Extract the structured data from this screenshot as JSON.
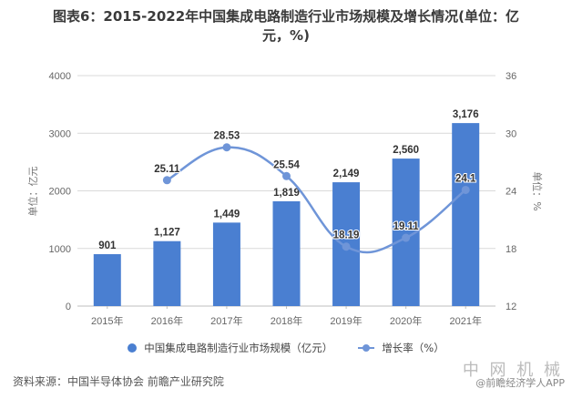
{
  "title": {
    "line1": "图表6：2015-2022年中国集成电路制造行业市场规模及增长情况(单位：亿",
    "line2": "元，%)"
  },
  "axes": {
    "left_title": "单位：亿元",
    "right_title": "单位：%",
    "left_ticks": [
      "0",
      "1000",
      "2000",
      "3000",
      "4000"
    ],
    "right_ticks": [
      "12",
      "18",
      "24",
      "30",
      "36"
    ]
  },
  "legend": {
    "bar_label": "中国集成电路制造行业市场规模（亿元）",
    "line_label": "增长率（%）"
  },
  "footer": {
    "source": "资料来源：中国半导体协会 前瞻产业研究院",
    "credit": "@前瞻经济学人APP",
    "watermark": "中 网 机 械"
  },
  "colors": {
    "bar": "#4a7fd1",
    "line": "#6f95d8",
    "grid": "#d9d9d9"
  },
  "chart_data": {
    "type": "bar",
    "title": "2015-2022年中国集成电路制造行业市场规模及增长情况(单位：亿元，%)",
    "categories": [
      "2015年",
      "2016年",
      "2017年",
      "2018年",
      "2019年",
      "2020年",
      "2021年"
    ],
    "series": [
      {
        "name": "中国集成电路制造行业市场规模（亿元）",
        "type": "bar",
        "axis": "left",
        "values": [
          901,
          1127,
          1449,
          1819,
          2149,
          2560,
          3176
        ],
        "labels": [
          "901",
          "1,127",
          "1,449",
          "1,819",
          "2,149",
          "2,560",
          "3,176"
        ]
      },
      {
        "name": "增长率（%）",
        "type": "line",
        "axis": "right",
        "values": [
          null,
          25.11,
          28.53,
          25.54,
          18.19,
          19.11,
          24.1
        ],
        "labels": [
          "",
          "25.11",
          "28.53",
          "25.54",
          "18.19",
          "19.11",
          "24.1"
        ]
      }
    ],
    "xlabel": "",
    "ylabel": "单位：亿元",
    "y2label": "单位：%",
    "ylim": [
      0,
      4000
    ],
    "y2lim": [
      12,
      36
    ],
    "grid": true,
    "legend_position": "bottom"
  }
}
